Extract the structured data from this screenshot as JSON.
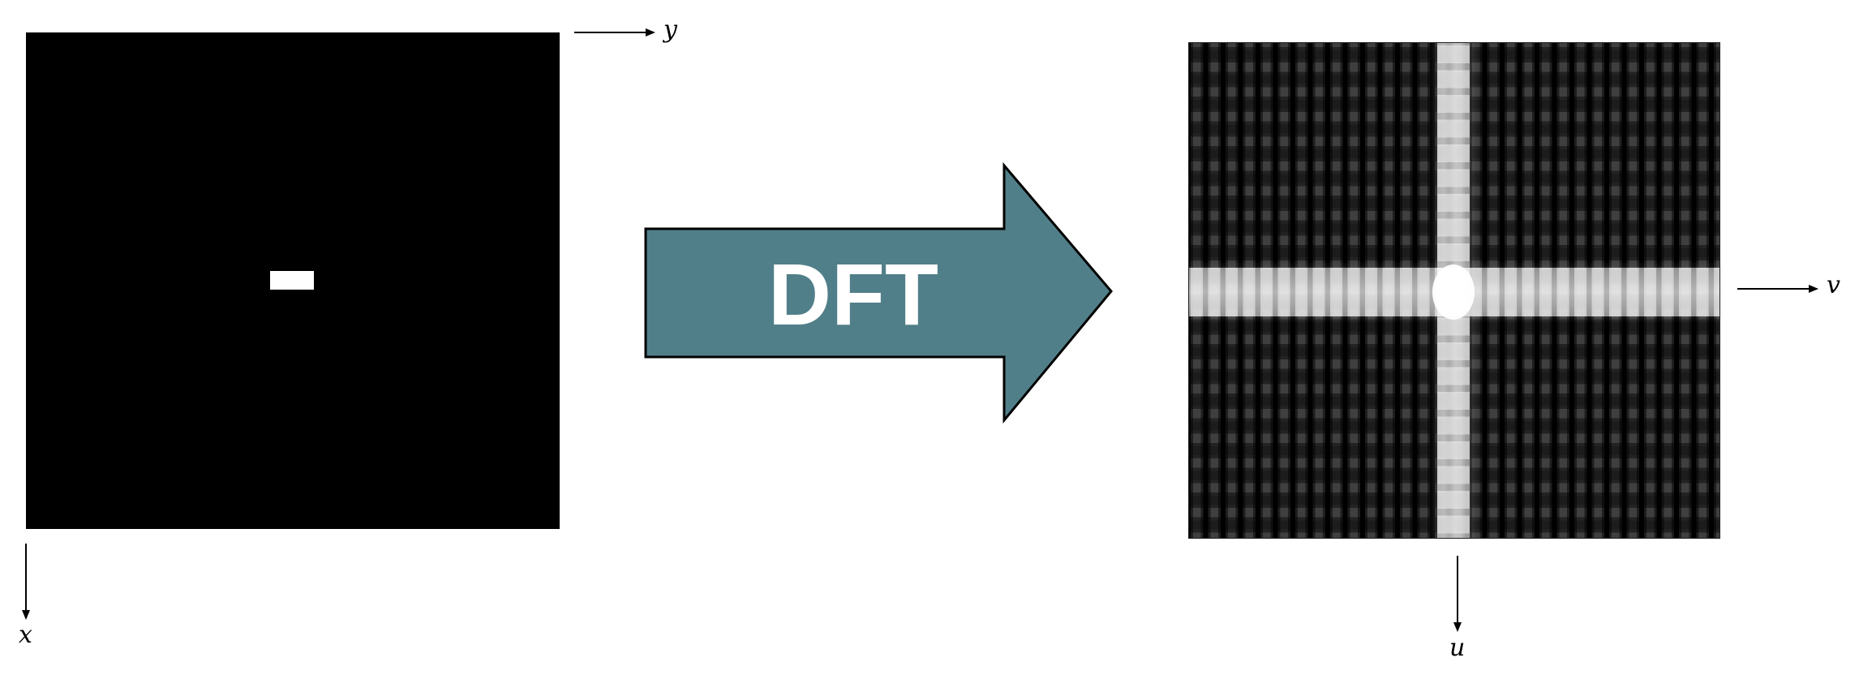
{
  "input_image": {
    "axis_horizontal_label": "y",
    "axis_vertical_label": "x"
  },
  "transform_arrow": {
    "label": "DFT",
    "fill_color": "#517f89"
  },
  "spectrum_image": {
    "axis_horizontal_label": "v",
    "axis_vertical_label": "u"
  }
}
